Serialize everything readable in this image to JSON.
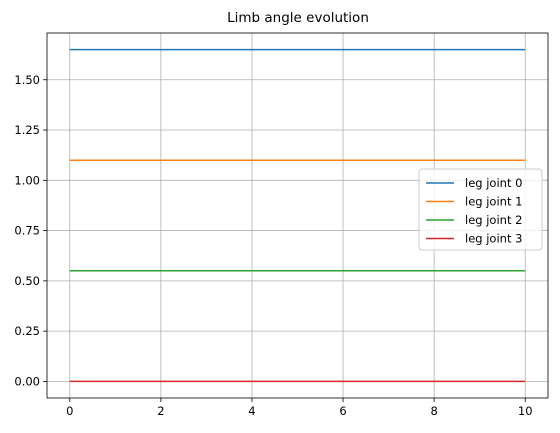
{
  "chart_data": {
    "type": "line",
    "title": "Limb angle evolution",
    "xlabel": "",
    "ylabel": "",
    "xlim": [
      -0.5,
      10.5
    ],
    "ylim": [
      -0.0825,
      1.7325
    ],
    "xticks": [
      0,
      2,
      4,
      6,
      8,
      10
    ],
    "yticks": [
      0.0,
      0.25,
      0.5,
      0.75,
      1.0,
      1.25,
      1.5
    ],
    "ytick_labels": [
      "0.00",
      "0.25",
      "0.50",
      "0.75",
      "1.00",
      "1.25",
      "1.50"
    ],
    "grid": true,
    "legend_position": "center-right",
    "series": [
      {
        "name": "leg joint 0",
        "color": "#1f77b4",
        "x": [
          0,
          10
        ],
        "y": [
          1.65,
          1.65
        ]
      },
      {
        "name": "leg joint 1",
        "color": "#ff7f0e",
        "x": [
          0,
          10
        ],
        "y": [
          1.1,
          1.1
        ]
      },
      {
        "name": "leg joint 2",
        "color": "#2ca02c",
        "x": [
          0,
          10
        ],
        "y": [
          0.55,
          0.55
        ]
      },
      {
        "name": "leg joint 3",
        "color": "#d62728",
        "x": [
          0,
          10
        ],
        "y": [
          0.0,
          0.0
        ]
      }
    ]
  }
}
